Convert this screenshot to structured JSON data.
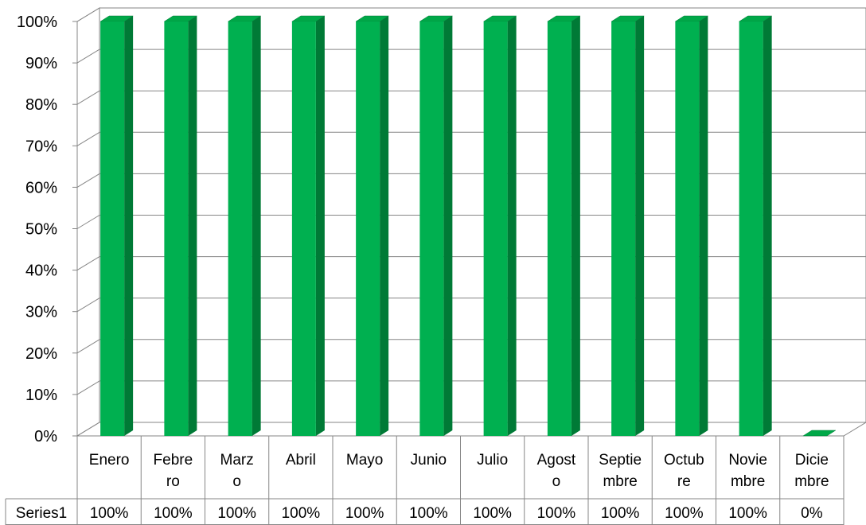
{
  "chart_data": {
    "type": "bar",
    "title": "",
    "xlabel": "",
    "ylabel": "",
    "ylim": [
      0,
      1
    ],
    "y_ticks": [
      "0%",
      "10%",
      "20%",
      "30%",
      "40%",
      "50%",
      "60%",
      "70%",
      "80%",
      "90%",
      "100%"
    ],
    "y_tick_values": [
      0,
      0.1,
      0.2,
      0.3,
      0.4,
      0.5,
      0.6,
      0.7,
      0.8,
      0.9,
      1.0
    ],
    "grid": true,
    "three_d": true,
    "legend": "none",
    "data_table": true,
    "categories": [
      "Enero",
      "Febrero",
      "Marzo",
      "Abril",
      "Mayo",
      "Junio",
      "Julio",
      "Agosto",
      "Septiembre",
      "Octubre",
      "Noviembre",
      "Diciembre"
    ],
    "category_display_lines": [
      [
        "Enero"
      ],
      [
        "Febre",
        "ro"
      ],
      [
        "Marz",
        "o"
      ],
      [
        "Abril"
      ],
      [
        "Mayo"
      ],
      [
        "Junio"
      ],
      [
        "Julio"
      ],
      [
        "Agost",
        "o"
      ],
      [
        "Septie",
        "mbre"
      ],
      [
        "Octub",
        "re"
      ],
      [
        "Novie",
        "mbre"
      ],
      [
        "Dicie",
        "mbre"
      ]
    ],
    "series": [
      {
        "name": "Series1",
        "values": [
          1.0,
          1.0,
          1.0,
          1.0,
          1.0,
          1.0,
          1.0,
          1.0,
          1.0,
          1.0,
          1.0,
          0.0
        ],
        "value_labels": [
          "100%",
          "100%",
          "100%",
          "100%",
          "100%",
          "100%",
          "100%",
          "100%",
          "100%",
          "100%",
          "100%",
          "0%"
        ]
      }
    ],
    "colors": {
      "bar_front": "#00b050",
      "bar_side": "#007a36",
      "bar_top": "#00a848",
      "grid": "#868686",
      "axis": "#868686"
    }
  }
}
